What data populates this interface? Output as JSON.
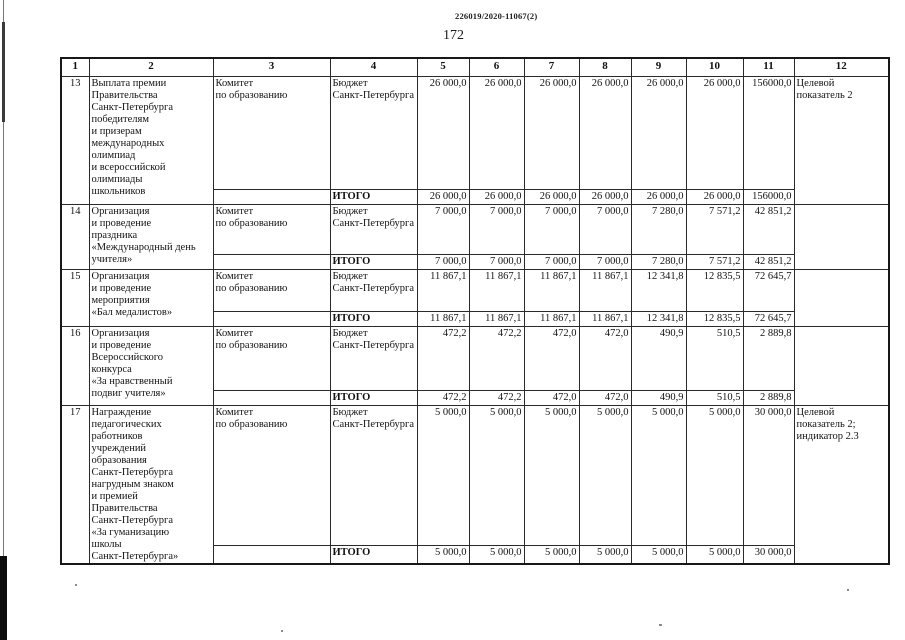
{
  "page": {
    "doc_ref": "226019/2020-11067(2)",
    "page_number": "172"
  },
  "table": {
    "column_numbers": [
      "1",
      "2",
      "3",
      "4",
      "5",
      "6",
      "7",
      "8",
      "9",
      "10",
      "11",
      "12"
    ],
    "itogo_label": "ИТОГО",
    "rows": [
      {
        "num": "13",
        "name": "Выплата премии\nПравительства\nСанкт-Петербурга\nпобедителям\nи призерам\nмеждународных\nолимпиад\nи всероссийской\nолимпиады\nшкольников",
        "executor": "Комитет\nпо образованию",
        "budget": "Бюджет\nСанкт-Петербурга",
        "values": [
          "26 000,0",
          "26 000,0",
          "26 000,0",
          "26 000,0",
          "26 000,0",
          "26 000,0",
          "156000,0"
        ],
        "itogo_values": [
          "26 000,0",
          "26 000,0",
          "26 000,0",
          "26 000,0",
          "26 000,0",
          "26 000,0",
          "156000,0"
        ],
        "target": "Целевой\nпоказатель 2"
      },
      {
        "num": "14",
        "name": "Организация\nи проведение\nпраздника\n«Международный день\nучителя»",
        "executor": "Комитет\nпо образованию",
        "budget": "Бюджет\nСанкт-Петербурга",
        "values": [
          "7 000,0",
          "7 000,0",
          "7 000,0",
          "7 000,0",
          "7 280,0",
          "7 571,2",
          "42 851,2"
        ],
        "itogo_values": [
          "7 000,0",
          "7 000,0",
          "7 000,0",
          "7 000,0",
          "7 280,0",
          "7 571,2",
          "42 851,2"
        ],
        "target": ""
      },
      {
        "num": "15",
        "name": "Организация\nи проведение\nмероприятия\n«Бал медалистов»",
        "executor": "Комитет\nпо образованию",
        "budget": "Бюджет\nСанкт-Петербурга",
        "values": [
          "11 867,1",
          "11 867,1",
          "11 867,1",
          "11 867,1",
          "12 341,8",
          "12 835,5",
          "72 645,7"
        ],
        "itogo_values": [
          "11 867,1",
          "11 867,1",
          "11 867,1",
          "11 867,1",
          "12 341,8",
          "12 835,5",
          "72 645,7"
        ],
        "target": ""
      },
      {
        "num": "16",
        "name": "Организация\nи проведение\nВсероссийского\nконкурса\n«За нравственный\nподвиг учителя»",
        "executor": "Комитет\nпо образованию",
        "budget": "Бюджет\nСанкт-Петербурга",
        "values": [
          "472,2",
          "472,2",
          "472,0",
          "472,0",
          "490,9",
          "510,5",
          "2 889,8"
        ],
        "itogo_values": [
          "472,2",
          "472,2",
          "472,0",
          "472,0",
          "490,9",
          "510,5",
          "2 889,8"
        ],
        "target": ""
      },
      {
        "num": "17",
        "name": "Награждение\nпедагогических\nработников\nучреждений\nобразования\nСанкт-Петербурга\nнагрудным знаком\nи премией\nПравительства\nСанкт-Петербурга\n«За гуманизацию\nшколы\nСанкт-Петербурга»",
        "executor": "Комитет\nпо образованию",
        "budget": "Бюджет\nСанкт-Петербурга",
        "values": [
          "5 000,0",
          "5 000,0",
          "5 000,0",
          "5 000,0",
          "5 000,0",
          "5 000,0",
          "30 000,0"
        ],
        "itogo_values": [
          "5 000,0",
          "5 000,0",
          "5 000,0",
          "5 000,0",
          "5 000,0",
          "5 000,0",
          "30 000,0"
        ],
        "target": "Целевой\nпоказатель 2;\nиндикатор 2.3"
      }
    ]
  }
}
